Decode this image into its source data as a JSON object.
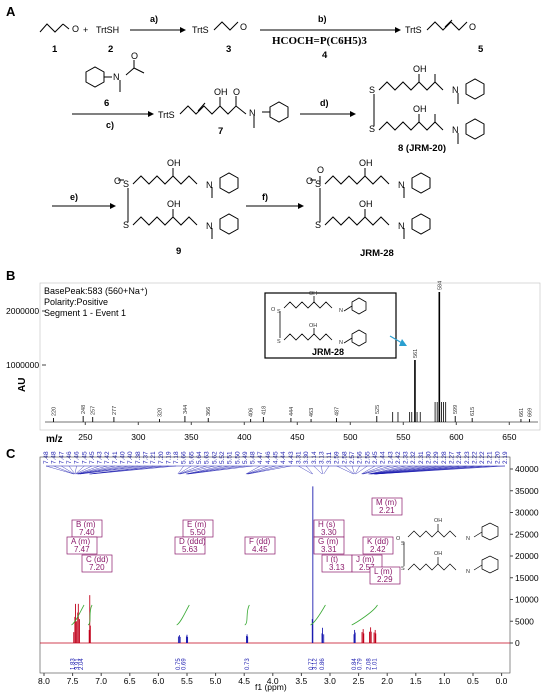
{
  "panels": {
    "A": {
      "letter": "A",
      "compounds": {
        "c1": "1",
        "c2": "2",
        "c3": "3",
        "c4": "4",
        "c5": "5",
        "c6": "6",
        "c7": "7",
        "c8": "8 (JRM-20)",
        "c9": "9",
        "c10": "JRM-28"
      },
      "labels": {
        "plus": "+",
        "trtsh": "TrtSH",
        "trts": "TrtS",
        "s": "S",
        "oh": "OH",
        "n": "N",
        "o": "O"
      },
      "steps": {
        "a": "a)",
        "b": "b)",
        "c": "c)",
        "d": "d)",
        "e": "e)",
        "f": "f)"
      },
      "reagent_b": "HCOCH=P(C6H5)3"
    },
    "B": {
      "letter": "B",
      "info": [
        "BasePeak:583 (560+Na⁺)",
        "Polarity:Positive",
        "Segment 1 - Event 1"
      ],
      "inset_label": "JRM-28",
      "ylabel": "AU",
      "xlabel": "m/z",
      "yticks": [
        "2000000",
        "1000000"
      ],
      "xticks": [
        "250",
        "300",
        "350",
        "400",
        "450",
        "500",
        "550",
        "600",
        "650"
      ],
      "peak_labels": [
        "220",
        "248",
        "257",
        "277",
        "320",
        "344",
        "366",
        "406",
        "418",
        "444",
        "463",
        "487",
        "525",
        "561",
        "584",
        "599",
        "615",
        "661",
        "669"
      ]
    },
    "C": {
      "letter": "C",
      "xlabel": "f1 (ppm)",
      "xticks": [
        "8.0",
        "7.5",
        "7.0",
        "6.5",
        "6.0",
        "5.5",
        "5.0",
        "4.5",
        "4.0",
        "3.5",
        "3.0",
        "2.5",
        "2.0",
        "1.5",
        "1.0",
        "0.5",
        "0.0"
      ],
      "yticks": [
        "40000",
        "35000",
        "30000",
        "25000",
        "20000",
        "15000",
        "10000",
        "5000",
        "0"
      ],
      "shifts": [
        "7.48",
        "7.48",
        "7.47",
        "7.46",
        "7.46",
        "7.45",
        "7.45",
        "7.43",
        "7.42",
        "7.41",
        "7.40",
        "7.40",
        "7.38",
        "7.37",
        "7.21",
        "7.20",
        "7.19",
        "7.18",
        "5.66",
        "5.65",
        "5.64",
        "5.63",
        "5.62",
        "5.52",
        "5.51",
        "5.50",
        "5.49",
        "5.48",
        "4.47",
        "4.46",
        "4.45",
        "4.44",
        "4.43",
        "3.31",
        "3.30",
        "3.14",
        "3.13",
        "3.11",
        "2.59",
        "2.58",
        "2.57",
        "2.56",
        "2.55",
        "2.45",
        "2.44",
        "2.43",
        "2.42",
        "2.33",
        "2.32",
        "2.31",
        "2.30",
        "2.29",
        "2.28",
        "2.27",
        "2.24",
        "2.23",
        "2.22",
        "2.22",
        "2.21",
        "2.20",
        "2.19"
      ],
      "assignments": [
        {
          "id": "B",
          "mult": "B (m)",
          "shift": "7.40"
        },
        {
          "id": "A",
          "mult": "A (m)",
          "shift": "7.47"
        },
        {
          "id": "C",
          "mult": "C (dd)",
          "shift": "7.20"
        },
        {
          "id": "E",
          "mult": "E (m)",
          "shift": "5.50"
        },
        {
          "id": "D",
          "mult": "D (ddd)",
          "shift": "5.63"
        },
        {
          "id": "F",
          "mult": "F (dd)",
          "shift": "4.45"
        },
        {
          "id": "H",
          "mult": "H (s)",
          "shift": "3.30"
        },
        {
          "id": "G",
          "mult": "G (m)",
          "shift": "3.31"
        },
        {
          "id": "I",
          "mult": "I (t)",
          "shift": "3.13"
        },
        {
          "id": "K",
          "mult": "K (dd)",
          "shift": "2.42"
        },
        {
          "id": "J",
          "mult": "J (m)",
          "shift": "2.57"
        },
        {
          "id": "L",
          "mult": "L (m)",
          "shift": "2.29"
        },
        {
          "id": "M",
          "mult": "M (m)",
          "shift": "2.21"
        }
      ],
      "integrals": [
        "1.83",
        "3.91",
        "2.04",
        "0.75",
        "0.69",
        "0.73",
        "0.77",
        "3.12",
        "0.86",
        "0.84",
        "0.79",
        "2.08",
        "1.01"
      ]
    }
  },
  "colors": {
    "blue": "#1c1cb0",
    "magenta": "#8b1a6b",
    "red": "#c0001a",
    "green": "#3aaa35",
    "teal": "#2a9fd0"
  }
}
